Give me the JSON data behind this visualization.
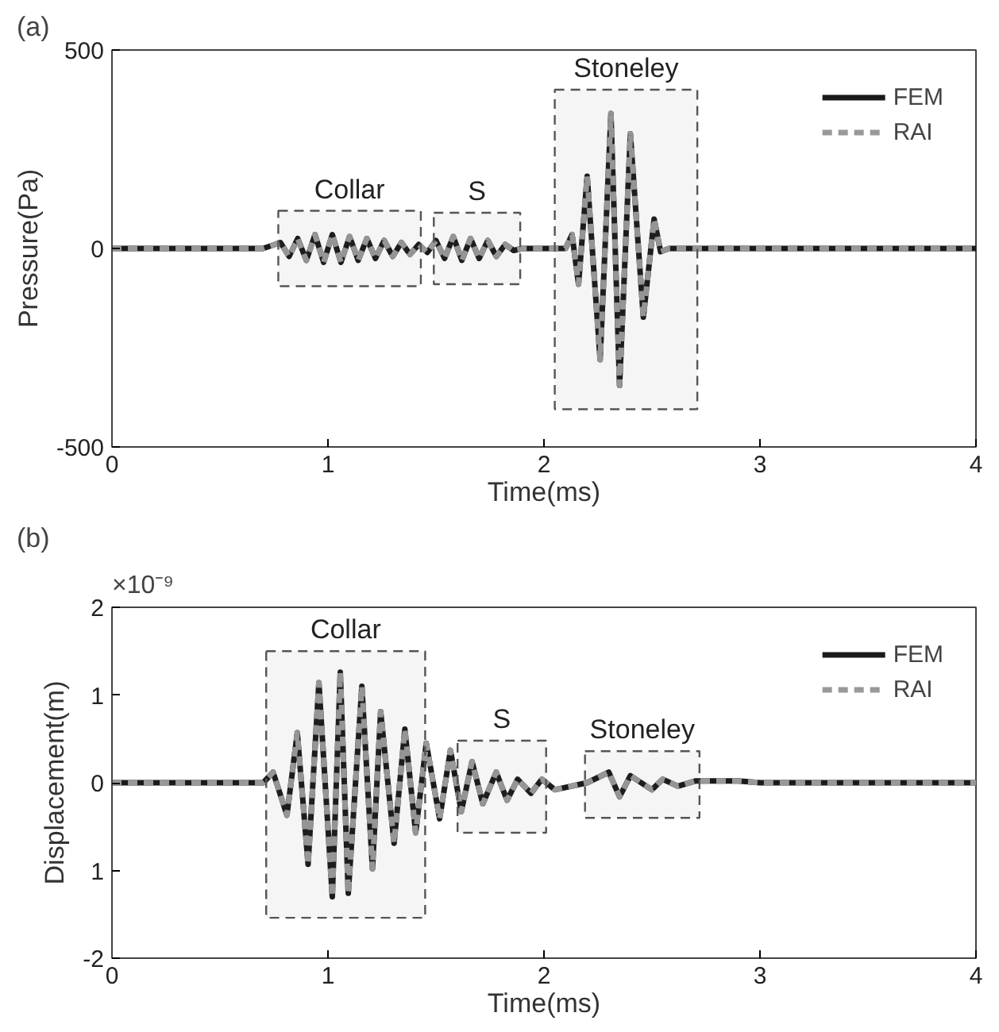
{
  "chart_data": [
    {
      "type": "line",
      "title": "(a)",
      "xlabel": "Time(ms)",
      "ylabel": "Pressure(Pa)",
      "x": [
        0,
        0.7,
        0.78,
        0.82,
        0.86,
        0.9,
        0.94,
        0.98,
        1.02,
        1.06,
        1.1,
        1.14,
        1.18,
        1.22,
        1.26,
        1.3,
        1.34,
        1.38,
        1.42,
        1.46,
        1.5,
        1.54,
        1.58,
        1.62,
        1.66,
        1.7,
        1.74,
        1.78,
        1.82,
        1.86,
        1.9,
        2.1,
        2.13,
        2.16,
        2.2,
        2.26,
        2.31,
        2.35,
        2.4,
        2.46,
        2.51,
        2.54,
        2.58,
        4
      ],
      "series": [
        {
          "name": "FEM",
          "color": "#1a1a1a",
          "line_style": "solid",
          "values": [
            0,
            0,
            15,
            -20,
            25,
            -30,
            35,
            -35,
            35,
            -35,
            30,
            -30,
            25,
            -25,
            20,
            -20,
            15,
            -15,
            10,
            -10,
            20,
            -25,
            30,
            -30,
            25,
            -25,
            20,
            -20,
            10,
            -5,
            0,
            0,
            35,
            -90,
            182,
            -280,
            340,
            -345,
            289,
            -173,
            74,
            -8,
            0,
            0
          ]
        },
        {
          "name": "RAI",
          "color": "#999999",
          "line_style": "dashed",
          "values": [
            0,
            0,
            15,
            -20,
            25,
            -30,
            35,
            -35,
            35,
            -35,
            30,
            -30,
            25,
            -25,
            20,
            -20,
            15,
            -15,
            10,
            -10,
            20,
            -25,
            30,
            -30,
            25,
            -25,
            20,
            -20,
            10,
            -5,
            0,
            0,
            35,
            -90,
            182,
            -280,
            340,
            -345,
            289,
            -173,
            74,
            -8,
            0,
            0
          ]
        }
      ],
      "xlim": [
        0,
        4
      ],
      "xticks": [
        0,
        1,
        2,
        3,
        4
      ],
      "ylim": [
        -500,
        500
      ],
      "yticks": [
        -500,
        0,
        500
      ],
      "legend": "top right",
      "grid": false,
      "marker": "none",
      "bands": [
        {
          "axis": "x",
          "from": 0.77,
          "to": 1.43,
          "label": "Collar",
          "color": "#555555"
        },
        {
          "axis": "x",
          "from": 1.49,
          "to": 1.89,
          "label": "S",
          "color": "#555555"
        },
        {
          "axis": "x",
          "from": 2.05,
          "to": 2.71,
          "label": "Stoneley",
          "color": "#555555"
        }
      ]
    },
    {
      "type": "line",
      "title": "(b)",
      "xlabel": "Time(ms)",
      "ylabel": "Displacement(m)",
      "annotations": [
        "×10⁻⁹"
      ],
      "x": [
        0,
        0.7,
        0.746,
        0.81,
        0.858,
        0.908,
        0.958,
        1.02,
        1.057,
        1.094,
        1.157,
        1.206,
        1.244,
        1.306,
        1.356,
        1.406,
        1.455,
        1.517,
        1.567,
        1.617,
        1.667,
        1.717,
        1.779,
        1.829,
        1.878,
        1.94,
        1.99,
        2.05,
        2.2,
        2.3,
        2.35,
        2.4,
        2.5,
        2.55,
        2.62,
        2.7,
        2.9,
        3.0,
        4
      ],
      "series": [
        {
          "name": "FEM",
          "color": "#1a1a1a",
          "line_style": "solid",
          "values": [
            0,
            0,
            0.12,
            -0.37,
            0.57,
            -0.93,
            1.14,
            -1.3,
            1.26,
            -1.26,
            1.1,
            -0.98,
            0.81,
            -0.69,
            0.61,
            -0.57,
            0.45,
            -0.41,
            0.37,
            -0.33,
            0.24,
            -0.24,
            0.12,
            -0.2,
            0.04,
            -0.12,
            0.04,
            -0.08,
            0,
            0.12,
            -0.16,
            0.08,
            -0.08,
            0.04,
            -0.04,
            0.02,
            0.02,
            0,
            0
          ]
        },
        {
          "name": "RAI",
          "color": "#999999",
          "line_style": "dashed",
          "values": [
            0,
            0,
            0.12,
            -0.37,
            0.57,
            -0.93,
            1.14,
            -1.3,
            1.26,
            -1.26,
            1.1,
            -0.98,
            0.81,
            -0.69,
            0.61,
            -0.57,
            0.45,
            -0.41,
            0.37,
            -0.33,
            0.24,
            -0.24,
            0.12,
            -0.2,
            0.04,
            -0.12,
            0.04,
            -0.08,
            0,
            0.12,
            -0.16,
            0.08,
            -0.08,
            0.04,
            -0.04,
            0.02,
            0.02,
            0,
            0
          ]
        }
      ],
      "xlim": [
        0,
        4
      ],
      "xticks": [
        0,
        1,
        2,
        3,
        4
      ],
      "ylim": [
        -2,
        2
      ],
      "yticks": [
        -2,
        {
          "value": -1,
          "label": "1"
        },
        0,
        1,
        2
      ],
      "legend": "top right",
      "grid": false,
      "marker": "none",
      "bands": [
        {
          "axis": "x",
          "from": 0.714,
          "to": 1.45,
          "label": "Collar",
          "color": "#555555"
        },
        {
          "axis": "x",
          "from": 1.6,
          "to": 2.01,
          "label": "S",
          "color": "#555555"
        },
        {
          "axis": "x",
          "from": 2.19,
          "to": 2.72,
          "label": "Stoneley",
          "color": "#555555"
        }
      ]
    }
  ]
}
